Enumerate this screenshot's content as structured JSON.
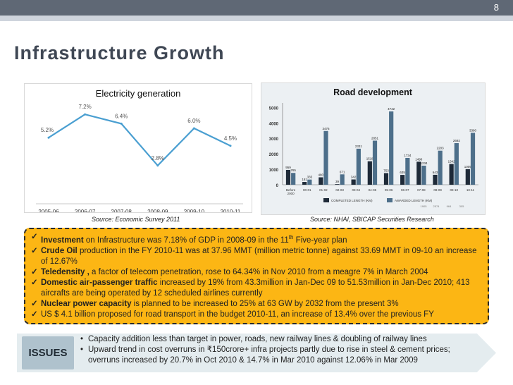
{
  "page": {
    "number": "8",
    "title": "Infrastructure Growth"
  },
  "electricity_chart": {
    "chart_data": {
      "type": "line",
      "title": "Electricity generation",
      "categories": [
        "2005-06",
        "2006-07",
        "2007-08",
        "2008-09",
        "2009-10",
        "2010-11"
      ],
      "values": [
        5.2,
        7.2,
        6.4,
        2.8,
        6.0,
        4.5
      ],
      "value_labels": [
        "5.2%",
        "7.2%",
        "6.4%",
        "2.8%",
        "6.0%",
        "4.5%"
      ],
      "ylim": [
        0,
        8
      ],
      "color": "#4a9fd1"
    },
    "source": "Source: Economic Survey 2011"
  },
  "road_chart": {
    "chart_data": {
      "type": "bar",
      "title": "Road development",
      "categories": [
        "Before 2000",
        "00-01",
        "01-02",
        "02-03",
        "03-04",
        "04-05",
        "05-06",
        "06-07",
        "07-08",
        "08-09",
        "09-10",
        "10-11"
      ],
      "series": [
        {
          "name": "COMPLETED LENGTH (KM)",
          "values": [
            959,
            181,
            480,
            39,
            342,
            1518,
            753,
            635,
            1490,
            643,
            1342,
            1009
          ],
          "color": "#1e2a38"
        },
        {
          "name": "AWARDED LENGTH (KM)",
          "values": [
            765,
            335,
            3476,
            671,
            2331,
            2851,
            4742,
            1734,
            1234,
            2203,
            2692,
            3360
          ]
        }
      ],
      "extra_labels": [
        "1905",
        "2574",
        "964",
        "305"
      ],
      "awarded_color": "#4d6f8a",
      "yticks": [
        0,
        1000,
        2000,
        3000,
        4000,
        5000
      ],
      "ylim": [
        0,
        5200
      ]
    },
    "source": "Source: NHAI, SBICAP Securities Research"
  },
  "highlights": [
    {
      "bold": "Investment",
      "text": " on Infrastructure was 7.18% of GDP in 2008-09 in the 11",
      "sup": "th",
      "after": " Five-year plan"
    },
    {
      "bold": "Crude Oil",
      "text": " production in the FY 2010-11 was at 37.96 MMT (million metric tonne) against 33.69 MMT in 09-10 an increase of 12.67%"
    },
    {
      "bold": "Teledensity ,",
      "text": " a factor of telecom penetration, rose to 64.34% in Nov 2010 from a meagre 7% in March 2004"
    },
    {
      "bold": "Domestic air-passenger traffic",
      "text": "  increased by 19% from 43.3million in Jan-Dec 09 to 51.53million in Jan-Dec 2010; 413 aircrafts are being operated by 12 scheduled airlines currently"
    },
    {
      "bold": "Nuclear power capacity",
      "text": " is planned to be increased to 25% at 63 GW by 2032 from the present 3%"
    },
    {
      "bold": "",
      "text": "US $ 4.1 billion proposed for road transport in the budget 2010-11, an increase of 13.4% over the previous FY"
    }
  ],
  "issues": {
    "label": "ISSUES",
    "items": [
      "Capacity addition less than target in power, roads, new railway lines & doubling of railway lines",
      "Upward trend in cost overruns in ₹150crore+ infra projects partly due to rise in steel & cement prices; overruns increased by 20.7% in Oct 2010 & 14.7% in Mar 2010 against 12.06% in Mar 2009"
    ]
  }
}
